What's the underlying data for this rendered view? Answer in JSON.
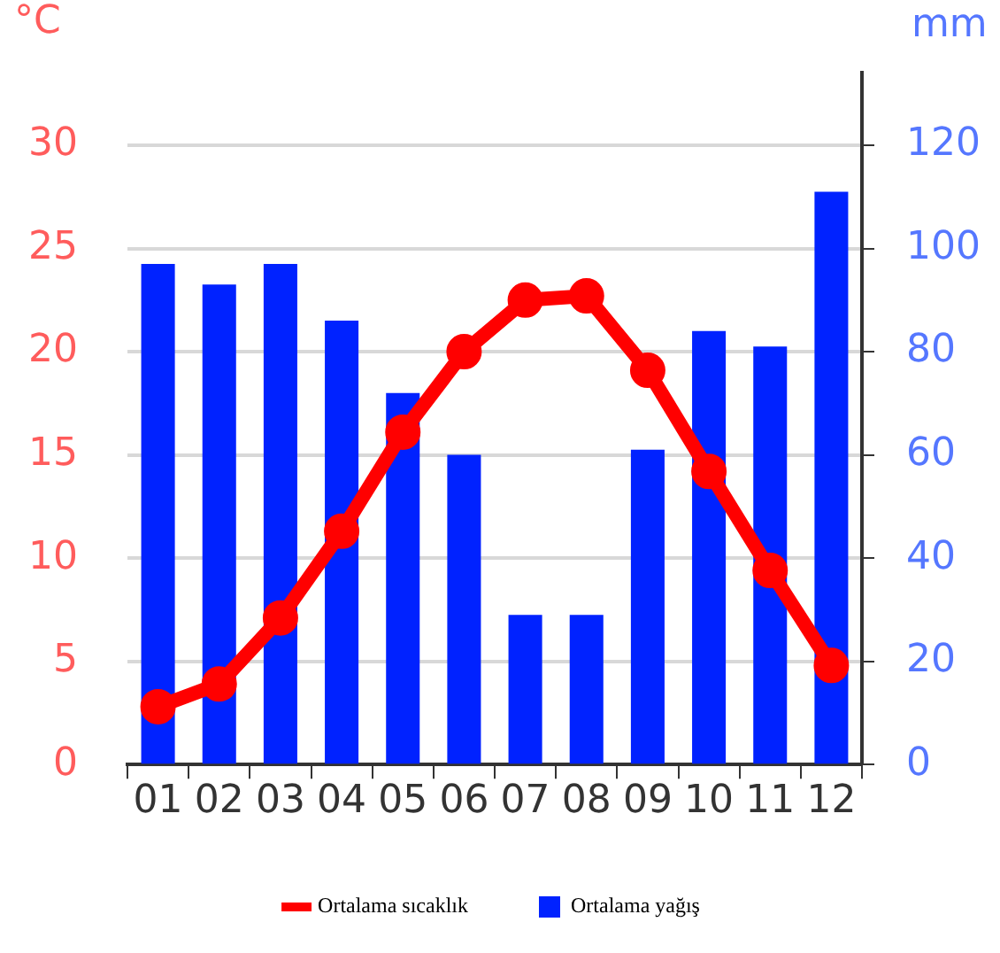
{
  "chart_data": {
    "type": "bar",
    "ylabel": "°C",
    "y2label": "mm",
    "categories": [
      "01",
      "02",
      "03",
      "04",
      "05",
      "06",
      "07",
      "08",
      "09",
      "10",
      "11",
      "12"
    ],
    "series": [
      {
        "name": "Ortalama sıcaklık",
        "type": "line",
        "color": "#ff0000",
        "values": [
          2.8,
          3.9,
          7.1,
          11.3,
          16.1,
          20.0,
          22.5,
          22.7,
          19.1,
          14.2,
          9.4,
          4.8
        ]
      },
      {
        "name": "Ortalama yağış",
        "axis": "y2",
        "color": "#0022ff",
        "values": [
          97,
          93,
          97,
          86,
          72,
          60,
          29,
          29,
          61,
          84,
          81,
          111
        ]
      }
    ],
    "ylim": [
      0,
      33.5
    ],
    "yticks": [
      0,
      5,
      10,
      15,
      20,
      25,
      30
    ],
    "y2lim": [
      0,
      134
    ],
    "y2ticks": [
      0,
      20,
      40,
      60,
      80,
      100,
      120
    ],
    "grid": "y",
    "legend": "bottom",
    "marker": "circle",
    "line_style": "solid"
  }
}
